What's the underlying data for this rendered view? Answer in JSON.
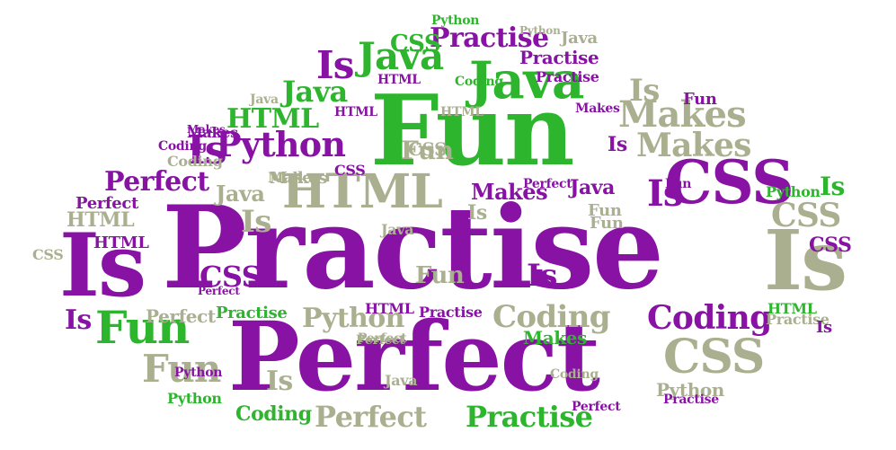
{
  "colors": {
    "purple": "#8712a4",
    "green": "#2db52d",
    "khaki": "#aab08f",
    "background": "#ffffff"
  },
  "words": [
    {
      "text": "Practise",
      "color": "purple"
    },
    {
      "text": "Perfect",
      "color": "purple"
    },
    {
      "text": "Fun",
      "color": "green"
    },
    {
      "text": "Is",
      "color": "purple"
    },
    {
      "text": "Is",
      "color": "khaki"
    },
    {
      "text": "CSS",
      "color": "purple"
    },
    {
      "text": "Java",
      "color": "green"
    },
    {
      "text": "Java",
      "color": "green"
    },
    {
      "text": "Is",
      "color": "purple"
    },
    {
      "text": "Python",
      "color": "purple"
    },
    {
      "text": "HTML",
      "color": "khaki"
    },
    {
      "text": "Makes",
      "color": "khaki"
    },
    {
      "text": "Makes",
      "color": "khaki"
    },
    {
      "text": "Coding",
      "color": "purple"
    },
    {
      "text": "Coding",
      "color": "khaki"
    },
    {
      "text": "Fun",
      "color": "green"
    },
    {
      "text": "Fun",
      "color": "khaki"
    },
    {
      "text": "CSS",
      "color": "khaki"
    },
    {
      "text": "Perfect",
      "color": "khaki"
    },
    {
      "text": "Practise",
      "color": "green"
    },
    {
      "text": "Practise",
      "color": "purple"
    },
    {
      "text": "CSS",
      "color": "green"
    },
    {
      "text": "HTML",
      "color": "green"
    },
    {
      "text": "Java",
      "color": "green"
    },
    {
      "text": "Is",
      "color": "purple"
    },
    {
      "text": "Perfect",
      "color": "purple"
    },
    {
      "text": "Python",
      "color": "khaki"
    },
    {
      "text": "CSS",
      "color": "khaki"
    },
    {
      "text": "CSS",
      "color": "purple"
    },
    {
      "text": "Is",
      "color": "khaki"
    },
    {
      "text": "Is",
      "color": "purple"
    },
    {
      "text": "Fun",
      "color": "khaki"
    },
    {
      "text": "Fun",
      "color": "khaki"
    },
    {
      "text": "Java",
      "color": "khaki"
    },
    {
      "text": "Is",
      "color": "khaki"
    },
    {
      "text": "Is",
      "color": "khaki"
    },
    {
      "text": "Is",
      "color": "purple"
    },
    {
      "text": "Is",
      "color": "purple"
    },
    {
      "text": "Is",
      "color": "green"
    },
    {
      "text": "Is",
      "color": "purple"
    },
    {
      "text": "Is",
      "color": "khaki"
    },
    {
      "text": "Perfect",
      "color": "purple"
    },
    {
      "text": "Perfect",
      "color": "khaki"
    },
    {
      "text": "Practise",
      "color": "purple"
    },
    {
      "text": "Python",
      "color": "khaki"
    },
    {
      "text": "Python",
      "color": "green"
    },
    {
      "text": "Python",
      "color": "green"
    },
    {
      "text": "Makes",
      "color": "purple"
    },
    {
      "text": "HTML",
      "color": "khaki"
    },
    {
      "text": "HTML",
      "color": "purple"
    },
    {
      "text": "Coding",
      "color": "green"
    },
    {
      "text": "Coding",
      "color": "khaki"
    },
    {
      "text": "Perfect",
      "color": "khaki"
    },
    {
      "text": "Java",
      "color": "khaki"
    },
    {
      "text": "Java",
      "color": "khaki"
    },
    {
      "text": "Java",
      "color": "purple"
    },
    {
      "text": "CSS",
      "color": "purple"
    },
    {
      "text": "CSS",
      "color": "khaki"
    },
    {
      "text": "CSS",
      "color": "purple"
    },
    {
      "text": "CSS",
      "color": "khaki"
    },
    {
      "text": "Makes",
      "color": "purple"
    },
    {
      "text": "Makes",
      "color": "khaki"
    },
    {
      "text": "Makes",
      "color": "green"
    },
    {
      "text": "Makes",
      "color": "purple"
    },
    {
      "text": "Practise",
      "color": "purple"
    },
    {
      "text": "Practise",
      "color": "khaki"
    },
    {
      "text": "Practise",
      "color": "green"
    },
    {
      "text": "Practise",
      "color": "purple"
    },
    {
      "text": "Practise",
      "color": "purple"
    },
    {
      "text": "Perfect",
      "color": "purple"
    },
    {
      "text": "Perfect",
      "color": "purple"
    },
    {
      "text": "HTML",
      "color": "purple"
    },
    {
      "text": "HTML",
      "color": "green"
    },
    {
      "text": "HTML",
      "color": "purple"
    },
    {
      "text": "HTML",
      "color": "khaki"
    },
    {
      "text": "Fun",
      "color": "khaki"
    },
    {
      "text": "Fun",
      "color": "purple"
    },
    {
      "text": "Fun",
      "color": "khaki"
    },
    {
      "text": "Fun",
      "color": "purple"
    },
    {
      "text": "Coding",
      "color": "purple"
    },
    {
      "text": "Coding",
      "color": "khaki"
    },
    {
      "text": "Coding",
      "color": "green"
    },
    {
      "text": "Python",
      "color": "purple"
    },
    {
      "text": "Python",
      "color": "khaki"
    },
    {
      "text": "Python",
      "color": "green"
    },
    {
      "text": "Makes",
      "color": "purple"
    },
    {
      "text": "Makes",
      "color": "khaki"
    },
    {
      "text": "Perfect",
      "color": "khaki"
    },
    {
      "text": "Perfect",
      "color": "purple"
    },
    {
      "text": "Java",
      "color": "khaki"
    },
    {
      "text": "Java",
      "color": "khaki"
    },
    {
      "text": "Is",
      "color": "purple"
    },
    {
      "text": "HTML",
      "color": "purple"
    }
  ]
}
